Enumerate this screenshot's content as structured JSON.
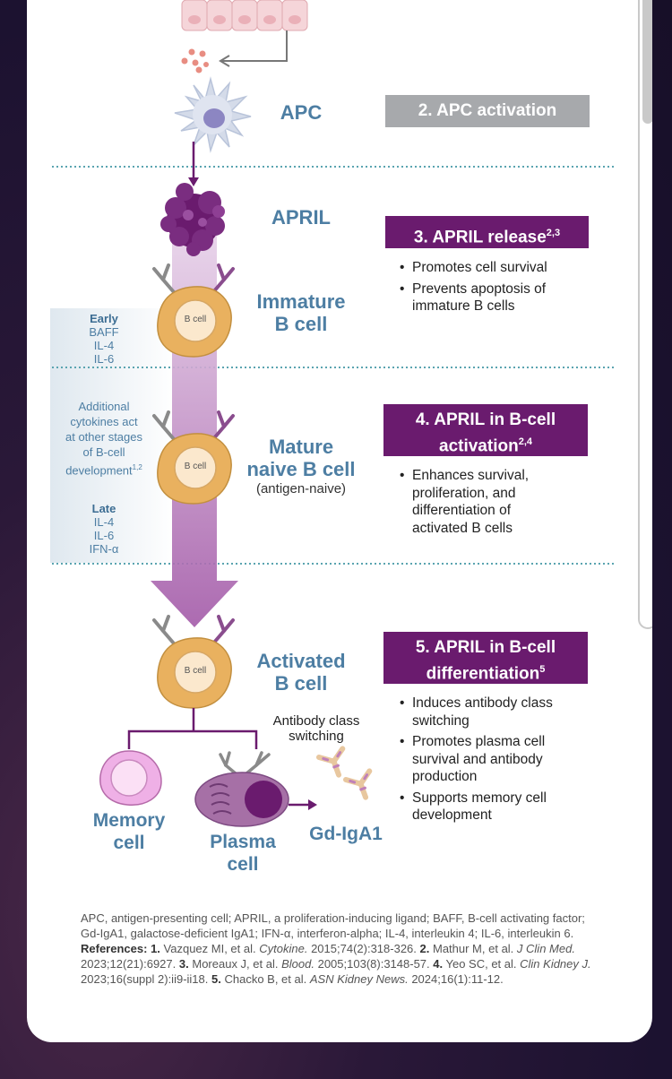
{
  "diagram": {
    "apc_label": "APC",
    "april_label": "APRIL",
    "immature_label_1": "Immature",
    "immature_label_2": "B cell",
    "mature_label_1": "Mature",
    "mature_label_2": "naive B cell",
    "mature_sub": "(antigen-naive)",
    "activated_label_1": "Activated",
    "activated_label_2": "B cell",
    "bcell_text": "B cell",
    "memory_label_1": "Memory",
    "memory_label_2": "cell",
    "plasma_label_1": "Plasma",
    "plasma_label_2": "cell",
    "gd_label": "Gd-IgA1",
    "class_switch_1": "Antibody class",
    "class_switch_2": "switching",
    "cyto_early_title": "Early",
    "cyto_early_items": [
      "BAFF",
      "IL-4",
      "IL-6"
    ],
    "cyto_additional": [
      "Additional",
      "cytokines act",
      "at other stages",
      "of B-cell",
      "development"
    ],
    "cyto_additional_sup": "1,2",
    "cyto_late_title": "Late",
    "cyto_late_items": [
      "IL-4",
      "IL-6",
      "IFN-α"
    ]
  },
  "steps": [
    {
      "title": "2. APC activation",
      "sup": "",
      "color": "#a7a9ac",
      "bullets": []
    },
    {
      "title": "3. APRIL release",
      "sup": "2,3",
      "color": "#6a1b6e",
      "bullets": [
        "Promotes cell survival",
        "Prevents apoptosis of immature B cells"
      ]
    },
    {
      "title_1": "4. APRIL in B-cell",
      "title_2": "activation",
      "sup": "2,4",
      "color": "#6a1b6e",
      "bullets": [
        "Enhances survival, proliferation, and differentiation of activated B cells"
      ]
    },
    {
      "title_1": "5. APRIL in B-cell",
      "title_2": "differentiation",
      "sup": "5",
      "color": "#6a1b6e",
      "bullets": [
        "Induces antibody class switching",
        "Promotes plasma cell survival and antibody production",
        "Supports memory cell development"
      ]
    }
  ],
  "footer": {
    "abbrev": "APC, antigen-presenting cell; APRIL, a proliferation-inducing ligand; BAFF, B-cell activating factor; Gd-IgA1, galactose-deficient IgA1; IFN-α, interferon-alpha; IL-4, interleukin 4; IL-6, interleukin 6.",
    "refs_label": "References:",
    "refs": [
      {
        "n": "1.",
        "authors": "Vazquez MI, et al.",
        "journal": "Cytokine.",
        "cite": "2015;74(2):318-326."
      },
      {
        "n": "2.",
        "authors": "Mathur M, et al.",
        "journal": "J Clin Med.",
        "cite": "2023;12(21):6927."
      },
      {
        "n": "3.",
        "authors": "Moreaux J, et al.",
        "journal": "Blood.",
        "cite": "2005;103(8):3148-57."
      },
      {
        "n": "4.",
        "authors": "Yeo SC, et al.",
        "journal": "Clin Kidney J.",
        "cite": "2023;16(suppl 2):ii9-ii18."
      },
      {
        "n": "5.",
        "authors": "Chacko B, et al.",
        "journal": "ASN Kidney News.",
        "cite": "2024;16(1):11-12."
      }
    ]
  },
  "colors": {
    "purple": "#6a1b6e",
    "label_blue": "#4d7ea3",
    "gray_box": "#a7a9ac",
    "bcell_fill": "#e9b15f",
    "dotted_teal": "#5aa4b0"
  }
}
